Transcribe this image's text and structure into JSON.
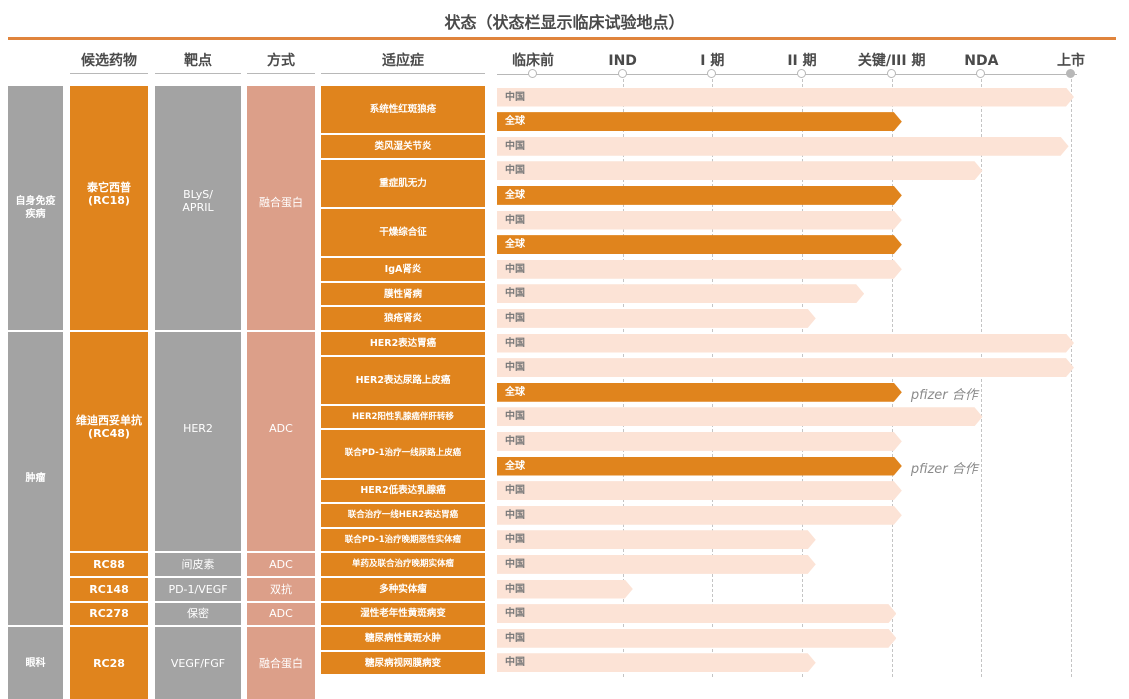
{
  "title": "状态（状态栏显示临床试验地点）",
  "headers": {
    "drug": "候选药物",
    "target": "靶点",
    "mode": "方式",
    "indication": "适应症"
  },
  "chart_data": {
    "type": "table",
    "phases": [
      "临床前",
      "IND",
      "I 期",
      "II 期",
      "关键/III  期",
      "NDA",
      "上市"
    ],
    "phase_scale_note": "progress values are fractions of the span from 临床前 (0) to 上市 (1)",
    "region_labels": {
      "china": "中国",
      "global": "全球"
    },
    "areas": [
      {
        "name": "自身免疫疾病",
        "rows": [
          0,
          10
        ]
      },
      {
        "name": "肿瘤",
        "rows": [
          10,
          22
        ]
      },
      {
        "name": "眼科",
        "rows": [
          22,
          25
        ]
      }
    ],
    "drugs": [
      {
        "name": "泰它西普\n(RC18)",
        "target": "BLyS/\nAPRIL",
        "mode": "融合蛋白",
        "rows": [
          0,
          10
        ]
      },
      {
        "name": "维迪西妥单抗\n(RC48)",
        "target": "HER2",
        "mode": "ADC",
        "rows": [
          10,
          19
        ]
      },
      {
        "name": "RC88",
        "target": "间皮素",
        "mode": "ADC",
        "rows": [
          19,
          20
        ]
      },
      {
        "name": "RC148",
        "target": "PD-1/VEGF",
        "mode": "双抗",
        "rows": [
          20,
          21
        ]
      },
      {
        "name": "RC278",
        "target": "保密",
        "mode": "ADC",
        "rows": [
          21,
          22
        ]
      },
      {
        "name": "RC28",
        "target": "VEGF/FGF",
        "mode": "融合蛋白",
        "rows": [
          22,
          25
        ]
      }
    ],
    "indications": [
      {
        "name": "系统性红斑狼疮",
        "bars": [
          {
            "region": "china",
            "progress": 1.0
          },
          {
            "region": "global",
            "progress": 0.68
          }
        ]
      },
      {
        "name": "类风湿关节炎",
        "bars": [
          {
            "region": "china",
            "progress": 0.99
          }
        ]
      },
      {
        "name": "重症肌无力",
        "bars": [
          {
            "region": "china",
            "progress": 0.83
          },
          {
            "region": "global",
            "progress": 0.68
          }
        ]
      },
      {
        "name": "干燥综合征",
        "bars": [
          {
            "region": "china",
            "progress": 0.68
          },
          {
            "region": "global",
            "progress": 0.68
          }
        ]
      },
      {
        "name": "IgA肾炎",
        "bars": [
          {
            "region": "china",
            "progress": 0.68
          }
        ]
      },
      {
        "name": "膜性肾病",
        "bars": [
          {
            "region": "china",
            "progress": 0.61
          }
        ]
      },
      {
        "name": "狼疮肾炎",
        "bars": [
          {
            "region": "china",
            "progress": 0.52
          }
        ]
      },
      {
        "name": "HER2表达胃癌",
        "bars": [
          {
            "region": "china",
            "progress": 1.0
          }
        ]
      },
      {
        "name": "HER2表达尿路上皮癌",
        "bars": [
          {
            "region": "china",
            "progress": 1.0
          },
          {
            "region": "global",
            "progress": 0.68,
            "note": "pfizer  合作"
          }
        ]
      },
      {
        "name": "HER2阳性乳腺癌伴肝转移",
        "bars": [
          {
            "region": "china",
            "progress": 0.83
          }
        ]
      },
      {
        "name": "联合PD-1治疗一线尿路上皮癌",
        "bars": [
          {
            "region": "china",
            "progress": 0.68
          },
          {
            "region": "global",
            "progress": 0.68,
            "note": "pfizer  合作"
          }
        ]
      },
      {
        "name": "HER2低表达乳腺癌",
        "bars": [
          {
            "region": "china",
            "progress": 0.68
          }
        ]
      },
      {
        "name": "联合治疗一线HER2表达胃癌",
        "bars": [
          {
            "region": "china",
            "progress": 0.68
          }
        ]
      },
      {
        "name": "联合PD-1治疗晚期恶性实体瘤",
        "bars": [
          {
            "region": "china",
            "progress": 0.52
          }
        ]
      },
      {
        "name": "单药及联合治疗晚期实体瘤",
        "bars": [
          {
            "region": "china",
            "progress": 0.52
          }
        ]
      },
      {
        "name": "多种实体瘤",
        "bars": [
          {
            "region": "china",
            "progress": 0.18
          }
        ]
      },
      {
        "name": "湿性老年性黄斑病变",
        "bars": [
          {
            "region": "china",
            "progress": 0.67
          }
        ]
      },
      {
        "name": "糖尿病性黄斑水肿",
        "bars": [
          {
            "region": "china",
            "progress": 0.67
          }
        ]
      },
      {
        "name": "糖尿病视网膜病变",
        "bars": [
          {
            "region": "china",
            "progress": 0.52
          }
        ]
      }
    ]
  }
}
